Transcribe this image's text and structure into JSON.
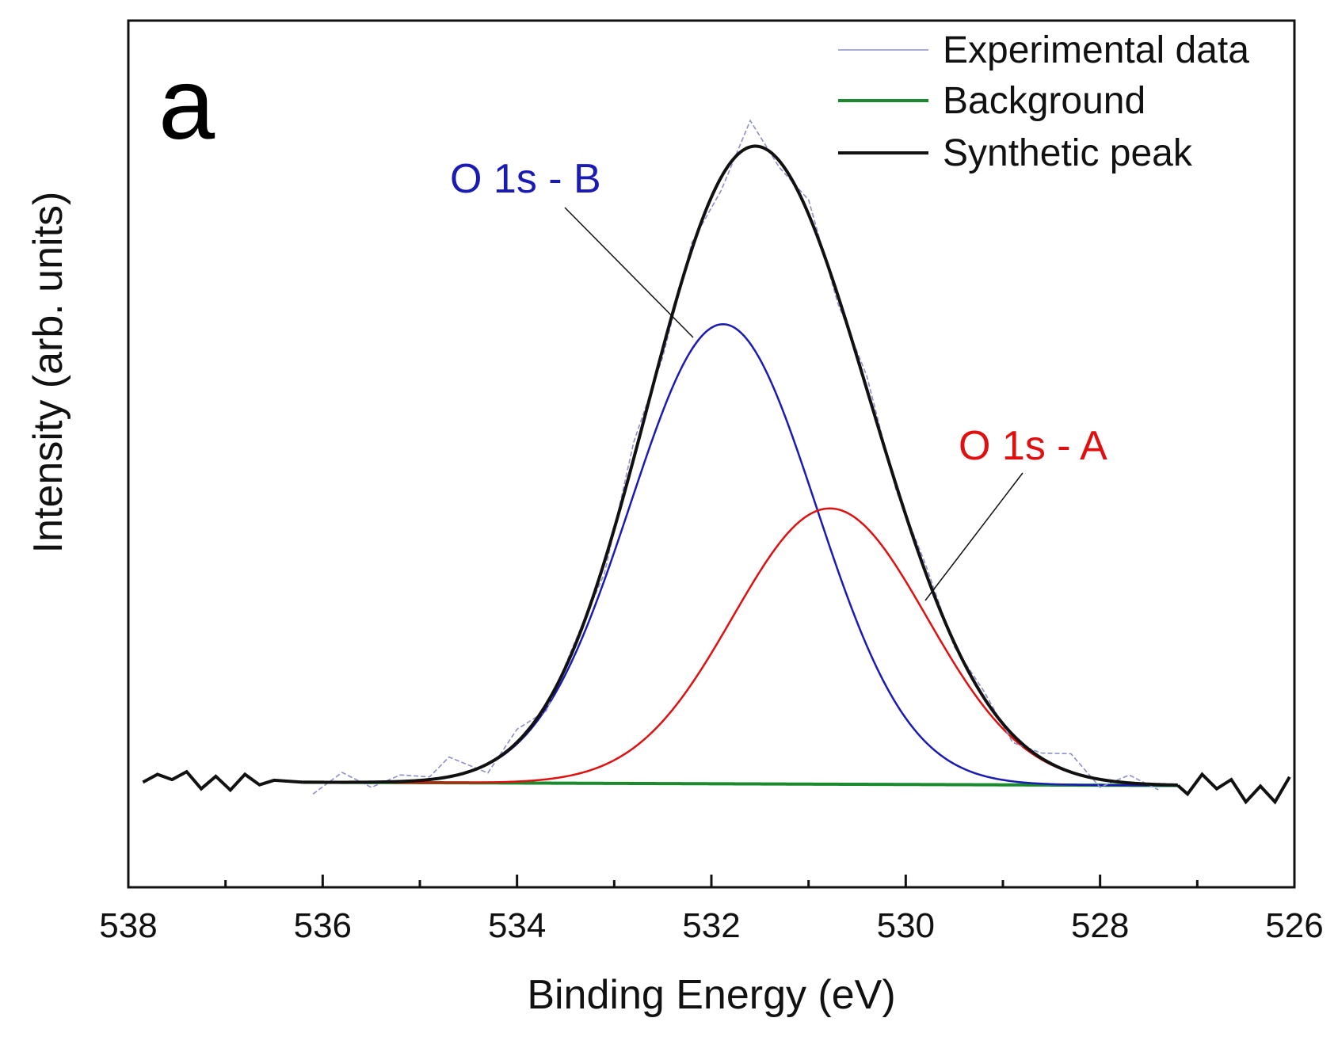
{
  "chart_data": {
    "type": "line",
    "panel_label": "a",
    "title": "",
    "xlabel": "Binding Energy (eV)",
    "ylabel": "Intensity (arb. units)",
    "xlim": [
      538,
      526
    ],
    "x_reversed": true,
    "ylim": [
      -0.16,
      1.16
    ],
    "y_ticks_shown": false,
    "grid": false,
    "legend_position": "top-right",
    "x_ticks": [
      538,
      536,
      534,
      532,
      530,
      528,
      526
    ],
    "x_tick_labels": [
      "538",
      "536",
      "534",
      "532",
      "530",
      "528",
      "526"
    ],
    "legend": [
      {
        "name": "Experimental data",
        "color": "#8c8fc8",
        "style": "thin"
      },
      {
        "name": "Background",
        "color": "#1a8a2e",
        "style": "line"
      },
      {
        "name": "Synthetic peak",
        "color": "#111111",
        "style": "line"
      }
    ],
    "annotations": [
      {
        "text": "O 1s - B",
        "color": "#1a1ab5",
        "target_x": 532.1,
        "target_y": 0.7
      },
      {
        "text": "O 1s - A",
        "color": "#e01010",
        "target_x": 529.9,
        "target_y": 0.3
      }
    ],
    "components": [
      {
        "name": "O 1s - B",
        "color": "#1a1ab5",
        "center": 531.88,
        "amplitude": 0.7,
        "fwhm": 2.25
      },
      {
        "name": "O 1s - A",
        "color": "#e01010",
        "center": 530.78,
        "amplitude": 0.42,
        "fwhm": 2.35
      }
    ],
    "background": {
      "name": "Background",
      "color": "#1a8a2e",
      "x_start": 536.2,
      "x_end": 527.2,
      "y_start": 0.0,
      "y_end": -0.005
    },
    "synthetic_peak": {
      "name": "Synthetic peak",
      "color": "#111111",
      "peak_x": 531.48,
      "peak_y": 1.0
    },
    "baseline_noise": {
      "color": "#111111",
      "left": {
        "x": [
          537.85,
          537.7,
          537.55,
          537.4,
          537.25,
          537.1,
          536.95,
          536.8,
          536.65,
          536.5
        ],
        "y": [
          0.0,
          0.012,
          0.004,
          0.016,
          -0.01,
          0.009,
          -0.012,
          0.012,
          -0.004,
          0.003
        ]
      },
      "right": {
        "x": [
          527.1,
          526.95,
          526.8,
          526.65,
          526.5,
          526.35,
          526.2,
          526.05
        ],
        "y": [
          -0.018,
          0.012,
          -0.01,
          0.004,
          -0.03,
          -0.006,
          -0.03,
          0.008
        ]
      }
    },
    "experimental_noise": {
      "x": [
        536.1,
        535.8,
        535.5,
        535.2,
        534.9,
        534.7,
        534.3,
        534.0,
        533.7,
        533.4,
        533.1,
        532.8,
        532.5,
        532.2,
        531.9,
        531.6,
        531.3,
        531.0,
        530.7,
        530.4,
        530.1,
        529.8,
        529.5,
        529.2,
        528.9,
        528.6,
        528.3,
        528.0,
        527.7,
        527.4
      ],
      "y": [
        -0.018,
        0.015,
        -0.008,
        0.01,
        0.004,
        0.03,
        -0.014,
        0.02,
        -0.01,
        0.006,
        -0.018,
        0.025,
        -0.012,
        0.01,
        -0.02,
        0.04,
        -0.01,
        0.022,
        -0.012,
        0.02,
        -0.008,
        0.012,
        -0.006,
        0.01,
        -0.012,
        0.008,
        0.028,
        -0.012,
        0.012,
        -0.008
      ]
    }
  }
}
